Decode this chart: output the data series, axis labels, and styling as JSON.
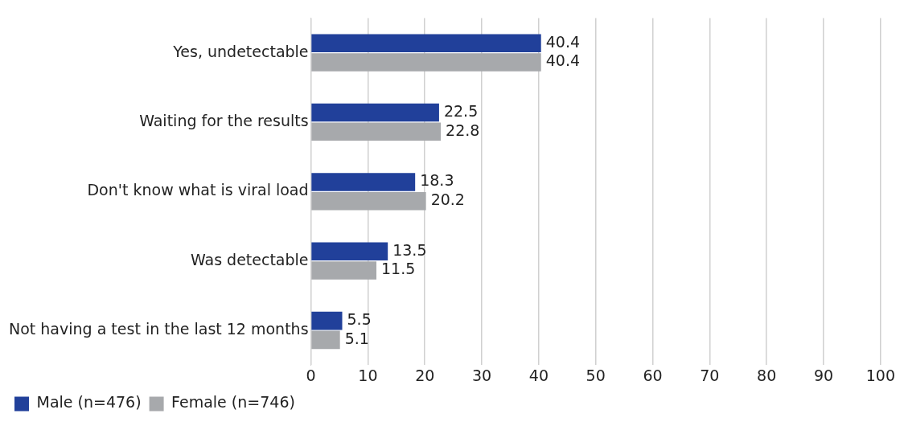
{
  "chart_data": {
    "type": "bar",
    "orientation": "horizontal",
    "categories": [
      "Yes, undetectable",
      "Waiting for the results",
      "Don't know what is viral load",
      "Was detectable",
      "Not having a test in the last 12 months"
    ],
    "series": [
      {
        "name": "Male (n=476)",
        "color": "#21409a",
        "values": [
          40.4,
          22.5,
          18.3,
          13.5,
          5.5
        ]
      },
      {
        "name": "Female (n=746)",
        "color": "#a7a9ac",
        "values": [
          40.4,
          22.8,
          20.2,
          11.5,
          5.1
        ]
      }
    ],
    "xlim": [
      0,
      100
    ],
    "xticks": [
      0,
      10,
      20,
      30,
      40,
      50,
      60,
      70,
      80,
      90,
      100
    ],
    "grid": "x",
    "legend": "bottom left",
    "data_labels": true
  }
}
